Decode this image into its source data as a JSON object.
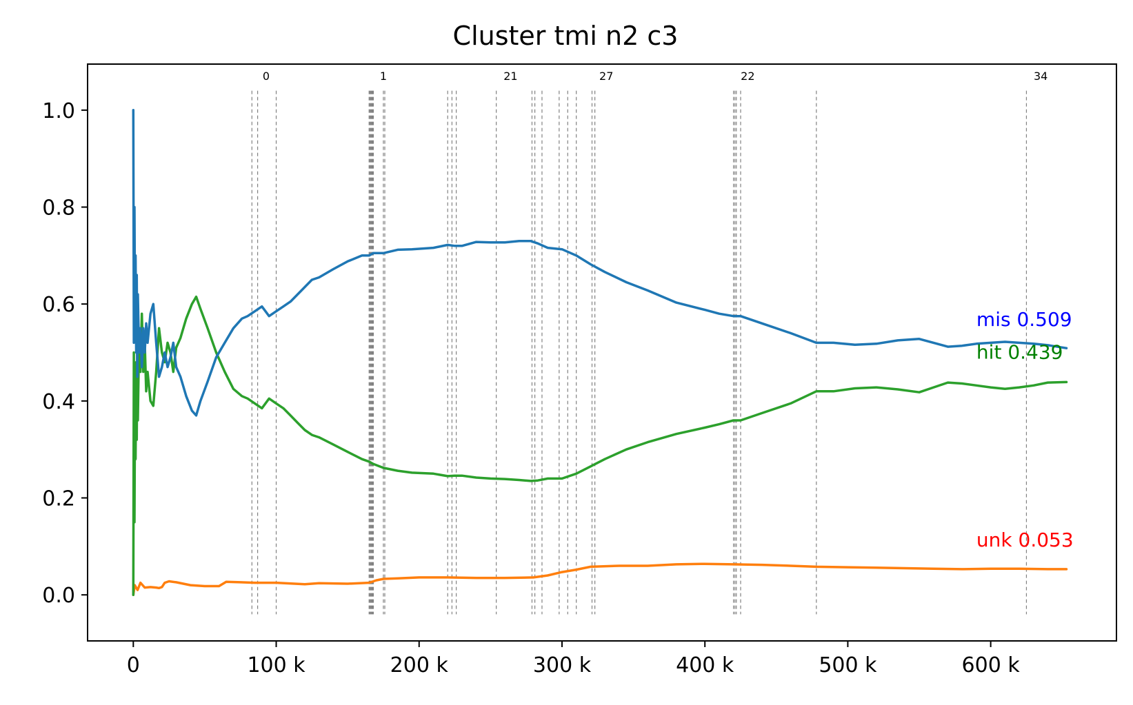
{
  "chart_data": {
    "type": "line",
    "title": "Cluster tmi n2 c3",
    "xlabel": "",
    "ylabel": "",
    "xlim": [
      -32000,
      688000
    ],
    "ylim": [
      -0.095,
      1.095
    ],
    "x_ticks": [
      {
        "value": 0,
        "label": "0"
      },
      {
        "value": 100000,
        "label": "100 k"
      },
      {
        "value": 200000,
        "label": "200 k"
      },
      {
        "value": 300000,
        "label": "300 k"
      },
      {
        "value": 400000,
        "label": "400 k"
      },
      {
        "value": 500000,
        "label": "500 k"
      },
      {
        "value": 600000,
        "label": "600 k"
      }
    ],
    "y_ticks": [
      {
        "value": 0.0,
        "label": "0.0"
      },
      {
        "value": 0.2,
        "label": "0.2"
      },
      {
        "value": 0.4,
        "label": "0.4"
      },
      {
        "value": 0.6,
        "label": "0.6"
      },
      {
        "value": 0.8,
        "label": "0.8"
      },
      {
        "value": 1.0,
        "label": "1.0"
      }
    ],
    "grid": false,
    "vertical_markers": {
      "color": "#808080",
      "style": "dashed",
      "y_range": [
        -0.04,
        1.04
      ],
      "positions": [
        83000,
        87000,
        100000,
        165000,
        165500,
        166000,
        166500,
        167000,
        167500,
        168000,
        175000,
        176000,
        220000,
        223000,
        226000,
        254000,
        279000,
        281000,
        286000,
        298000,
        304000,
        310000,
        321000,
        323000,
        420000,
        421000,
        422000,
        425000,
        478000,
        625000
      ],
      "labels": [
        {
          "x": 93000,
          "text": "0"
        },
        {
          "x": 175000,
          "text": "1"
        },
        {
          "x": 264000,
          "text": "21"
        },
        {
          "x": 331000,
          "text": "27"
        },
        {
          "x": 430000,
          "text": "22"
        },
        {
          "x": 635000,
          "text": "34"
        }
      ]
    },
    "series": [
      {
        "name": "mis",
        "color": "#1f77b4",
        "x": [
          0,
          400,
          800,
          1200,
          1600,
          2000,
          2400,
          2800,
          3200,
          4000,
          5000,
          6000,
          7000,
          8000,
          9000,
          10000,
          12000,
          14000,
          16000,
          18000,
          20000,
          22000,
          24000,
          26000,
          28000,
          30000,
          33000,
          37000,
          41000,
          44000,
          47000,
          52000,
          58000,
          64000,
          70000,
          76000,
          80000,
          85000,
          90000,
          95000,
          100000,
          105000,
          110000,
          115000,
          120000,
          125000,
          130000,
          140000,
          150000,
          160000,
          165000,
          168000,
          175000,
          185000,
          195000,
          210000,
          220000,
          225000,
          230000,
          240000,
          250000,
          260000,
          270000,
          278000,
          283000,
          290000,
          300000,
          310000,
          320000,
          330000,
          345000,
          360000,
          380000,
          400000,
          410000,
          420000,
          425000,
          440000,
          460000,
          478000,
          490000,
          505000,
          520000,
          535000,
          550000,
          560000,
          570000,
          580000,
          590000,
          600000,
          610000,
          620000,
          630000,
          640000,
          653000
        ],
        "values": [
          1.0,
          0.52,
          0.8,
          0.55,
          0.7,
          0.5,
          0.66,
          0.45,
          0.62,
          0.5,
          0.55,
          0.47,
          0.55,
          0.5,
          0.56,
          0.52,
          0.58,
          0.6,
          0.52,
          0.45,
          0.47,
          0.5,
          0.47,
          0.49,
          0.52,
          0.47,
          0.45,
          0.41,
          0.38,
          0.37,
          0.4,
          0.44,
          0.49,
          0.52,
          0.55,
          0.57,
          0.575,
          0.585,
          0.595,
          0.575,
          0.585,
          0.595,
          0.605,
          0.62,
          0.635,
          0.65,
          0.655,
          0.672,
          0.688,
          0.7,
          0.7,
          0.705,
          0.705,
          0.712,
          0.713,
          0.716,
          0.722,
          0.72,
          0.72,
          0.728,
          0.727,
          0.727,
          0.73,
          0.73,
          0.725,
          0.716,
          0.713,
          0.7,
          0.682,
          0.666,
          0.645,
          0.628,
          0.603,
          0.588,
          0.58,
          0.575,
          0.575,
          0.56,
          0.54,
          0.52,
          0.52,
          0.516,
          0.518,
          0.525,
          0.528,
          0.52,
          0.512,
          0.514,
          0.518,
          0.52,
          0.522,
          0.52,
          0.518,
          0.515,
          0.509
        ]
      },
      {
        "name": "hit",
        "color": "#2ca02c",
        "x": [
          0,
          400,
          800,
          1200,
          1600,
          2000,
          2400,
          2800,
          3200,
          4000,
          5000,
          6000,
          7000,
          8000,
          9000,
          10000,
          12000,
          14000,
          16000,
          18000,
          20000,
          22000,
          24000,
          26000,
          28000,
          30000,
          33000,
          37000,
          41000,
          44000,
          47000,
          52000,
          58000,
          64000,
          70000,
          76000,
          80000,
          85000,
          90000,
          95000,
          100000,
          105000,
          110000,
          115000,
          120000,
          125000,
          130000,
          140000,
          150000,
          160000,
          165000,
          168000,
          175000,
          185000,
          195000,
          210000,
          220000,
          225000,
          230000,
          240000,
          250000,
          260000,
          270000,
          278000,
          283000,
          290000,
          300000,
          310000,
          320000,
          330000,
          345000,
          360000,
          380000,
          400000,
          410000,
          420000,
          425000,
          440000,
          460000,
          478000,
          490000,
          505000,
          520000,
          535000,
          550000,
          560000,
          570000,
          580000,
          590000,
          600000,
          610000,
          620000,
          630000,
          640000,
          653000
        ],
        "values": [
          0.0,
          0.5,
          0.15,
          0.42,
          0.28,
          0.48,
          0.32,
          0.53,
          0.36,
          0.52,
          0.46,
          0.58,
          0.46,
          0.52,
          0.42,
          0.46,
          0.4,
          0.39,
          0.46,
          0.55,
          0.5,
          0.48,
          0.52,
          0.5,
          0.46,
          0.51,
          0.53,
          0.57,
          0.6,
          0.615,
          0.59,
          0.55,
          0.5,
          0.46,
          0.425,
          0.41,
          0.405,
          0.395,
          0.385,
          0.405,
          0.395,
          0.385,
          0.37,
          0.355,
          0.34,
          0.33,
          0.325,
          0.31,
          0.295,
          0.28,
          0.275,
          0.27,
          0.262,
          0.256,
          0.252,
          0.25,
          0.245,
          0.246,
          0.246,
          0.242,
          0.24,
          0.239,
          0.237,
          0.235,
          0.236,
          0.24,
          0.24,
          0.25,
          0.265,
          0.28,
          0.3,
          0.315,
          0.332,
          0.345,
          0.352,
          0.36,
          0.36,
          0.375,
          0.395,
          0.42,
          0.42,
          0.426,
          0.428,
          0.424,
          0.418,
          0.428,
          0.438,
          0.436,
          0.432,
          0.428,
          0.425,
          0.428,
          0.432,
          0.438,
          0.439
        ]
      },
      {
        "name": "unk",
        "color": "#ff7f0e",
        "x": [
          0,
          1000,
          3000,
          5000,
          8000,
          12000,
          16000,
          18000,
          20000,
          22000,
          25000,
          30000,
          40000,
          50000,
          60000,
          65000,
          75000,
          85000,
          100000,
          120000,
          130000,
          150000,
          165000,
          170000,
          175000,
          185000,
          200000,
          220000,
          240000,
          260000,
          280000,
          290000,
          300000,
          310000,
          320000,
          340000,
          360000,
          380000,
          400000,
          420000,
          440000,
          460000,
          478000,
          500000,
          520000,
          540000,
          560000,
          580000,
          600000,
          620000,
          640000,
          653000
        ],
        "values": [
          0.0,
          0.02,
          0.01,
          0.025,
          0.015,
          0.016,
          0.015,
          0.014,
          0.016,
          0.025,
          0.028,
          0.026,
          0.02,
          0.018,
          0.018,
          0.027,
          0.026,
          0.025,
          0.025,
          0.022,
          0.024,
          0.023,
          0.025,
          0.03,
          0.033,
          0.034,
          0.036,
          0.036,
          0.035,
          0.035,
          0.036,
          0.04,
          0.047,
          0.052,
          0.058,
          0.06,
          0.06,
          0.063,
          0.064,
          0.063,
          0.062,
          0.06,
          0.058,
          0.057,
          0.056,
          0.055,
          0.054,
          0.053,
          0.054,
          0.054,
          0.053,
          0.053
        ]
      }
    ],
    "end_labels": [
      {
        "text": "mis 0.509",
        "color": "#0000ff",
        "x": 590000,
        "y": 0.555
      },
      {
        "text": "hit 0.439",
        "color": "#008000",
        "x": 590000,
        "y": 0.487
      },
      {
        "text": "unk 0.053",
        "color": "#ff0000",
        "x": 590000,
        "y": 0.1
      }
    ]
  }
}
